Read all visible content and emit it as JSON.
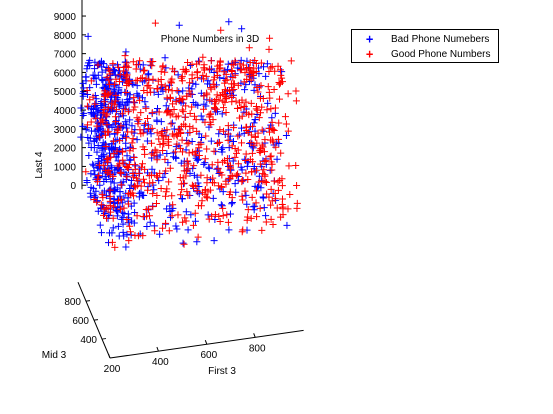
{
  "chart_data": {
    "type": "scatter",
    "projection": "3d",
    "title": "Phone Numbers in 3D",
    "xlabel": "First 3",
    "ylabel": "Mid 3",
    "zlabel": "Last 4",
    "xlim": [
      200,
      1000
    ],
    "ylim": [
      200,
      1000
    ],
    "zlim": [
      0,
      10000
    ],
    "x_ticks": [
      "200",
      "400",
      "600",
      "800"
    ],
    "y_ticks": [
      "400",
      "600",
      "800"
    ],
    "z_ticks": [
      "0",
      "1000",
      "2000",
      "3000",
      "4000",
      "5000",
      "6000",
      "7000",
      "8000",
      "9000"
    ],
    "grid": false,
    "legend_position": "top-right, outside axes",
    "marker": "+",
    "series": [
      {
        "name": "Bad Phone Numebers",
        "color": "#0000ff",
        "x": [
          212,
          230,
          245,
          260,
          278,
          295,
          310,
          330,
          348,
          365,
          380,
          398,
          415,
          432,
          450,
          468,
          485,
          502,
          520,
          538,
          556,
          574,
          592,
          610,
          628,
          646,
          664,
          682,
          700,
          718,
          736,
          754,
          772,
          790,
          808,
          826,
          844,
          862,
          880,
          215,
          250,
          300,
          350,
          420,
          470,
          520,
          560,
          600,
          640,
          690,
          740,
          780,
          820,
          860,
          240,
          320,
          400,
          480,
          540,
          580,
          620,
          660,
          700,
          760,
          800,
          850
        ],
        "y": [
          820,
          300,
          560,
          740,
          420,
          900,
          260,
          650,
          480,
          800,
          350,
          700,
          550,
          280,
          900,
          450,
          620,
          380,
          760,
          520,
          300,
          680,
          840,
          410,
          590,
          270,
          720,
          500,
          880,
          330,
          640,
          460,
          790,
          560,
          300,
          700,
          420,
          850,
          600,
          450,
          680,
          350,
          800,
          520,
          260,
          730,
          470,
          610,
          380,
          880,
          540,
          290,
          660,
          400,
          720,
          560,
          300,
          840,
          480,
          640,
          320,
          760,
          420,
          580,
          860,
          360
        ],
        "z": [
          8800,
          1200,
          5400,
          3300,
          7100,
          2500,
          6300,
          4200,
          900,
          7800,
          3600,
          5900,
          1800,
          8200,
          4700,
          2900,
          6600,
          400,
          7400,
          3900,
          5200,
          2100,
          8600,
          4500,
          1400,
          6900,
          3100,
          5700,
          800,
          7300,
          2600,
          4900,
          6100,
          1600,
          8100,
          3400,
          5500,
          2300,
          7000,
          4300,
          6700,
          1100,
          3800,
          8400,
          2000,
          5000,
          600,
          7600,
          3200,
          4600,
          6200,
          1500,
          8900,
          2800,
          5300,
          7900,
          1000,
          4100,
          6400,
          2400,
          7200,
          300,
          5800,
          3700,
          8300,
          1900
        ],
        "n_points_shown": 900
      },
      {
        "name": "Good Phone Numbers",
        "color": "#ff0000",
        "x": [
          225,
          265,
          290,
          335,
          360,
          390,
          425,
          455,
          490,
          515,
          545,
          575,
          605,
          635,
          665,
          695,
          725,
          755,
          785,
          815,
          845,
          875,
          905,
          935,
          960,
          985,
          255,
          305,
          375,
          445,
          505,
          565,
          625,
          685,
          745,
          805,
          865,
          925,
          975,
          280,
          340,
          410,
          530,
          650,
          770,
          890,
          950
        ],
        "y": [
          500,
          750,
          320,
          880,
          600,
          420,
          700,
          280,
          820,
          540,
          360,
          660,
          900,
          470,
          310,
          780,
          580,
          430,
          850,
          620,
          340,
          720,
          490,
          880,
          560,
          300,
          640,
          380,
          800,
          520,
          260,
          700,
          450,
          860,
          590,
          330,
          740,
          480,
          900,
          420,
          670,
          310,
          770,
          540,
          880,
          360,
          620
        ],
        "z": [
          6500,
          2200,
          8700,
          4000,
          1300,
          7500,
          3000,
          5600,
          9000,
          700,
          4800,
          6800,
          2700,
          8000,
          3500,
          5100,
          1700,
          7700,
          4400,
          200,
          6000,
          3300,
          8500,
          1200,
          5400,
          7100,
          2500,
          9200,
          4600,
          1000,
          6300,
          3800,
          8800,
          2000,
          5700,
          500,
          7400,
          4200,
          6900,
          1500,
          8300,
          3600,
          5200,
          2900,
          7800,
          900,
          6600
        ],
        "n_points_shown": 900
      }
    ]
  }
}
